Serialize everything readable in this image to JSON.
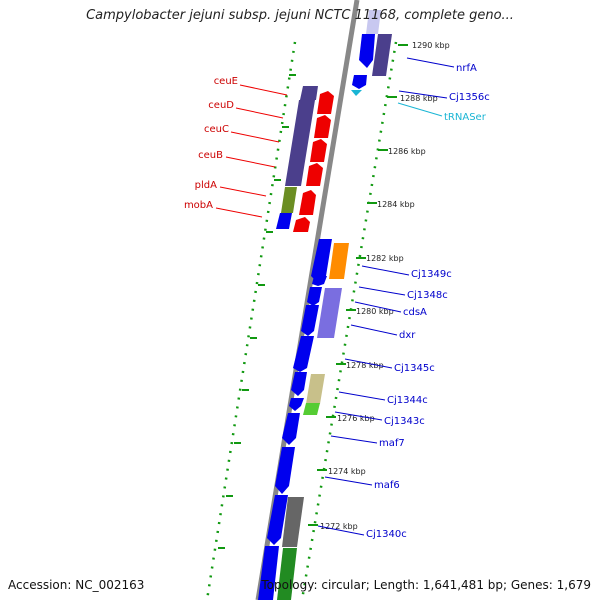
{
  "title": "Campylobacter jejuni subsp. jejuni NCTC 11168, complete geno...",
  "accession": "Accession: NC_002163",
  "topology": "Topology: circular; Length: 1,641,481 bp; Genes: 1,679",
  "ticks": [
    "1290 kbp",
    "1288 kbp",
    "1286 kbp",
    "1284 kbp",
    "1282 kbp",
    "1280 kbp",
    "1278 kbp",
    "1276 kbp",
    "1274 kbp",
    "1272 kbp"
  ],
  "left_labels": [
    "ceuE",
    "ceuD",
    "ceuC",
    "ceuB",
    "pldA",
    "mobA"
  ],
  "right_labels": [
    "nrfA",
    "Cj1356c",
    "tRNASer",
    "Cj1349c",
    "Cj1348c",
    "cdsA",
    "dxr",
    "Cj1345c",
    "Cj1344c",
    "Cj1343c",
    "maf7",
    "maf6",
    "Cj1340c"
  ],
  "colors": {
    "blue": "#0000ee",
    "red": "#ee0000",
    "lavender": "#4b3f8c",
    "cyan": "#19b5d4",
    "tick": "#119911"
  }
}
